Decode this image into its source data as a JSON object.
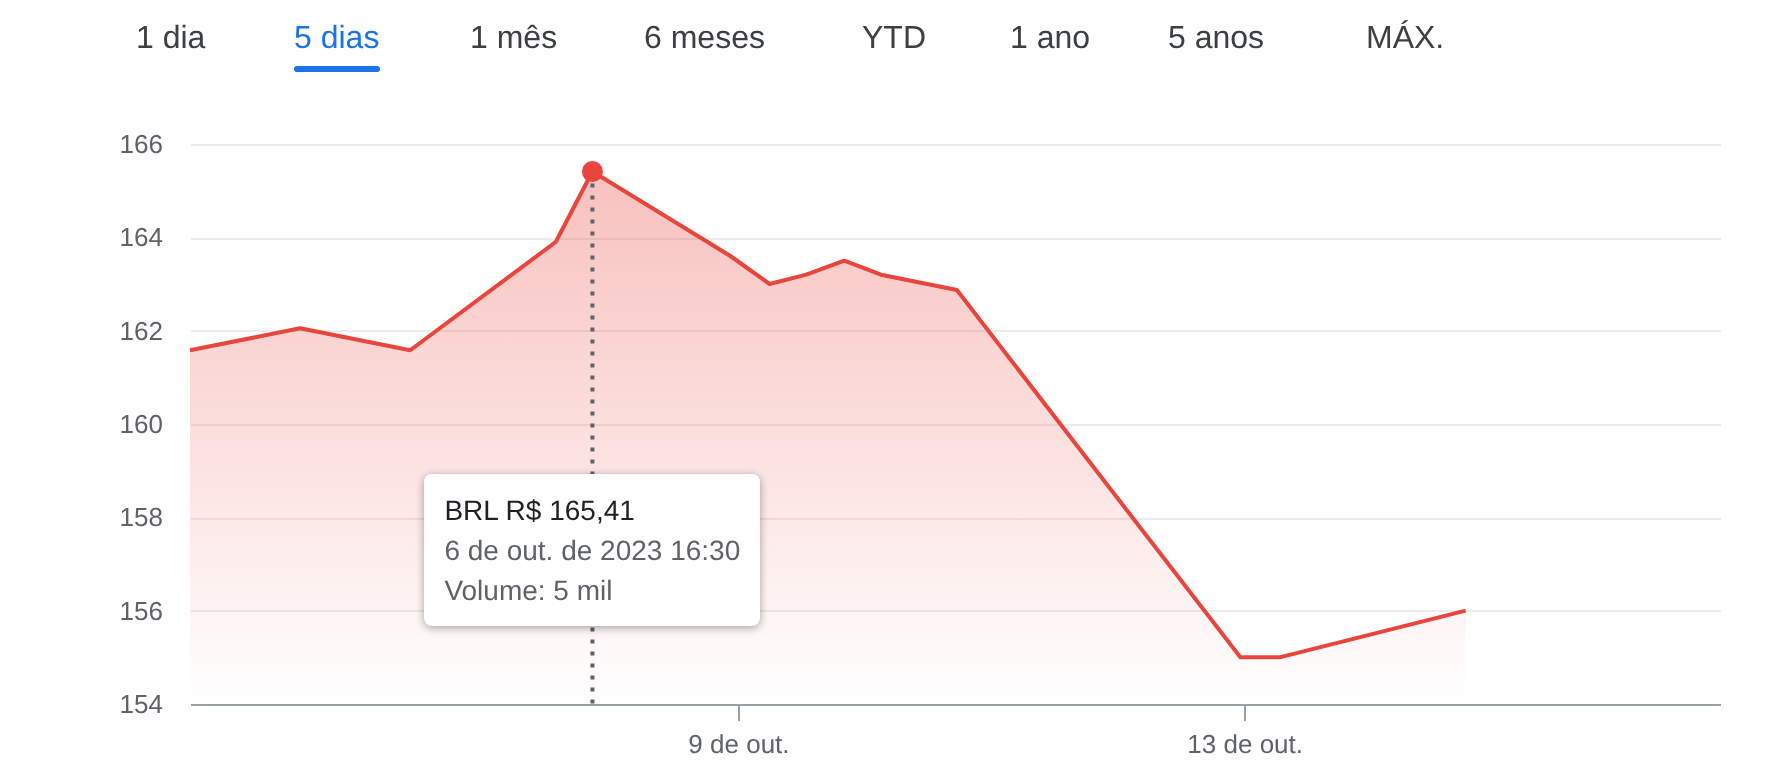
{
  "chart_data": {
    "type": "area",
    "x": [
      4.67,
      5.54,
      6.41,
      7.56,
      7.85,
      8.94,
      9.25,
      9.54,
      9.84,
      10.13,
      10.73,
      12.97,
      13.28,
      14.75
    ],
    "series": [
      {
        "color": "#e8453c",
        "values": [
          161.58,
          162.05,
          161.58,
          163.9,
          165.41,
          163.6,
          163.0,
          163.2,
          163.5,
          163.2,
          162.87,
          155.0,
          155.0,
          156.0
        ]
      }
    ],
    "xlim": [
      4.67,
      16.76
    ],
    "xticks": [
      {
        "value": 9,
        "label": "9 de out."
      },
      {
        "value": 13,
        "label": "13 de out."
      }
    ],
    "ylim": [
      154,
      166
    ],
    "yticks": [
      154,
      156,
      158,
      160,
      162,
      164,
      166
    ],
    "grid": "y",
    "ref_lines": [
      {
        "axis": "x",
        "value": 7.85,
        "color": "#5f6368",
        "line_style": "dotted"
      }
    ],
    "annotations": [
      "BRL R$ 165,41\n6 de out. de 2023 16:30\nVolume: 5 mil",
      "1 dia",
      "5 dias",
      "1 mês",
      "6 meses",
      "YTD",
      "1 ano",
      "5 anos",
      "MÁX."
    ]
  }
}
